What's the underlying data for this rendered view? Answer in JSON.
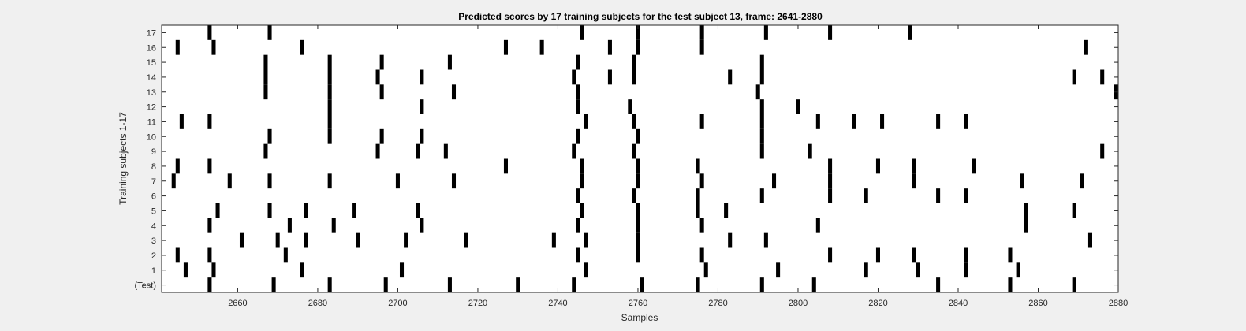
{
  "chart_data": {
    "type": "heatmap",
    "title": "Predicted scores by 17 training subjects for the test subject 13, frame: 2641-2880",
    "xlabel": "Samples",
    "ylabel": "Training subjects 1-17",
    "xlim": [
      2641,
      2880
    ],
    "xticks": [
      "2660",
      "2680",
      "2700",
      "2720",
      "2740",
      "2760",
      "2780",
      "2800",
      "2820",
      "2840",
      "2860",
      "2880"
    ],
    "xtick_values": [
      2660,
      2680,
      2700,
      2720,
      2740,
      2760,
      2780,
      2800,
      2820,
      2840,
      2860,
      2880
    ],
    "row_labels": [
      "(Test)",
      "1",
      "2",
      "3",
      "4",
      "5",
      "6",
      "7",
      "8",
      "9",
      "10",
      "11",
      "12",
      "13",
      "14",
      "15",
      "16",
      "17"
    ],
    "grid": false,
    "colors": {
      "background": "#ffffff",
      "mark": "#000000",
      "figure": "#f0f0f0"
    },
    "rows": [
      {
        "label": "(Test)",
        "samples": [
          2653,
          2669,
          2683,
          2697,
          2713,
          2730,
          2744,
          2761,
          2775,
          2791,
          2804,
          2835,
          2853,
          2869
        ]
      },
      {
        "label": "1",
        "samples": [
          2647,
          2654,
          2676,
          2701,
          2747,
          2777,
          2795,
          2817,
          2830,
          2842,
          2855
        ]
      },
      {
        "label": "2",
        "samples": [
          2645,
          2653,
          2672,
          2745,
          2760,
          2776,
          2808,
          2820,
          2829,
          2842,
          2853
        ]
      },
      {
        "label": "3",
        "samples": [
          2661,
          2670,
          2677,
          2690,
          2702,
          2717,
          2739,
          2747,
          2760,
          2783,
          2792,
          2873
        ]
      },
      {
        "label": "4",
        "samples": [
          2653,
          2673,
          2684,
          2706,
          2745,
          2760,
          2776,
          2805,
          2857
        ]
      },
      {
        "label": "5",
        "samples": [
          2655,
          2668,
          2677,
          2689,
          2705,
          2746,
          2760,
          2775,
          2782,
          2857,
          2869
        ]
      },
      {
        "label": "6",
        "samples": [
          2745,
          2759,
          2775,
          2791,
          2808,
          2817,
          2835,
          2842
        ]
      },
      {
        "label": "7",
        "samples": [
          2644,
          2658,
          2668,
          2683,
          2700,
          2714,
          2746,
          2760,
          2776,
          2794,
          2808,
          2829,
          2856,
          2871
        ]
      },
      {
        "label": "8",
        "samples": [
          2645,
          2653,
          2727,
          2746,
          2760,
          2775,
          2808,
          2820,
          2829,
          2844
        ]
      },
      {
        "label": "9",
        "samples": [
          2667,
          2695,
          2705,
          2712,
          2744,
          2759,
          2791,
          2803,
          2876
        ]
      },
      {
        "label": "10",
        "samples": [
          2668,
          2683,
          2696,
          2706,
          2745,
          2760,
          2791
        ]
      },
      {
        "label": "11",
        "samples": [
          2646,
          2653,
          2683,
          2747,
          2759,
          2776,
          2791,
          2805,
          2814,
          2821,
          2835,
          2842
        ]
      },
      {
        "label": "12",
        "samples": [
          2683,
          2706,
          2745,
          2758,
          2791,
          2800
        ]
      },
      {
        "label": "13",
        "samples": [
          2667,
          2683,
          2696,
          2714,
          2745,
          2790,
          2880
        ]
      },
      {
        "label": "14",
        "samples": [
          2667,
          2683,
          2695,
          2706,
          2744,
          2753,
          2759,
          2783,
          2791,
          2869,
          2876
        ]
      },
      {
        "label": "15",
        "samples": [
          2667,
          2683,
          2696,
          2713,
          2745,
          2759,
          2791
        ]
      },
      {
        "label": "16",
        "samples": [
          2645,
          2654,
          2676,
          2727,
          2736,
          2753,
          2760,
          2776,
          2872
        ]
      },
      {
        "label": "17",
        "samples": [
          2653,
          2668,
          2746,
          2760,
          2776,
          2792,
          2808,
          2828
        ]
      }
    ]
  }
}
